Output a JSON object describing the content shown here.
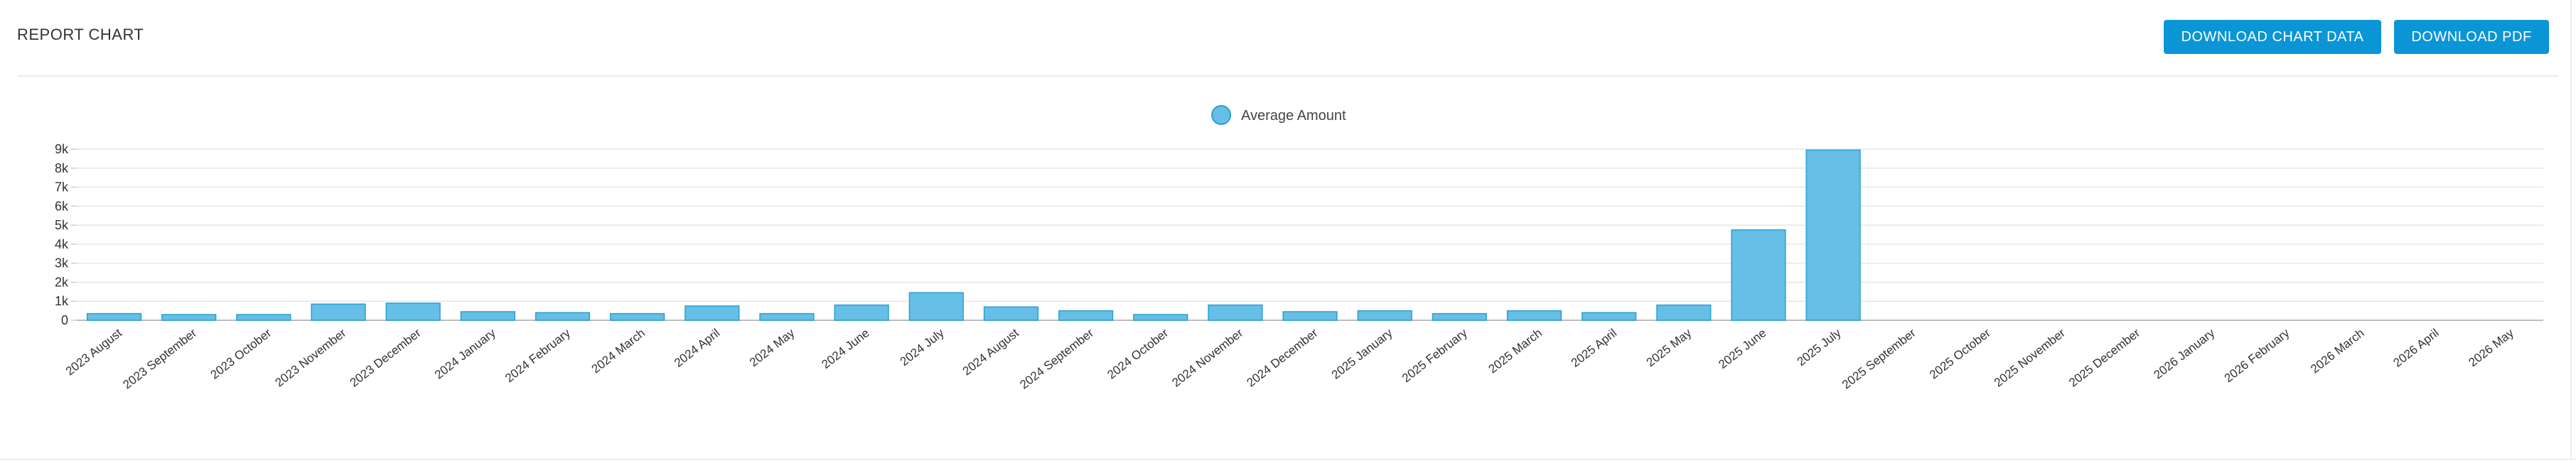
{
  "header": {
    "title": "REPORT CHART",
    "download_data_label": "DOWNLOAD CHART DATA",
    "download_pdf_label": "DOWNLOAD PDF"
  },
  "colors": {
    "accent": "#0a95d6",
    "bar_fill": "#65bfe6",
    "bar_stroke": "#2a9fd2",
    "grid": "#e6e6e6"
  },
  "chart_data": {
    "type": "bar",
    "title": "",
    "xlabel": "",
    "ylabel": "",
    "grid": true,
    "legend": "top-center",
    "ylim": [
      0,
      9000
    ],
    "yticks": [
      {
        "value": 0,
        "label": "0"
      },
      {
        "value": 1000,
        "label": "1k"
      },
      {
        "value": 2000,
        "label": "2k"
      },
      {
        "value": 3000,
        "label": "3k"
      },
      {
        "value": 4000,
        "label": "4k"
      },
      {
        "value": 5000,
        "label": "5k"
      },
      {
        "value": 6000,
        "label": "6k"
      },
      {
        "value": 7000,
        "label": "7k"
      },
      {
        "value": 8000,
        "label": "8k"
      },
      {
        "value": 9000,
        "label": "9k"
      }
    ],
    "categories": [
      "2023 August",
      "2023 September",
      "2023 October",
      "2023 November",
      "2023 December",
      "2024 January",
      "2024 February",
      "2024 March",
      "2024 April",
      "2024 May",
      "2024 June",
      "2024 July",
      "2024 August",
      "2024 September",
      "2024 October",
      "2024 November",
      "2024 December",
      "2025 January",
      "2025 February",
      "2025 March",
      "2025 April",
      "2025 May",
      "2025 June",
      "2025 July",
      "2025 September",
      "2025 October",
      "2025 November",
      "2025 December",
      "2026 January",
      "2026 February",
      "2026 March",
      "2026 April",
      "2026 May"
    ],
    "series": [
      {
        "name": "Average Amount",
        "values": [
          350,
          300,
          300,
          850,
          900,
          450,
          400,
          350,
          750,
          350,
          800,
          1450,
          700,
          500,
          300,
          800,
          450,
          500,
          350,
          500,
          400,
          800,
          4750,
          8950,
          0,
          0,
          0,
          0,
          0,
          0,
          0,
          0,
          0
        ]
      }
    ]
  }
}
